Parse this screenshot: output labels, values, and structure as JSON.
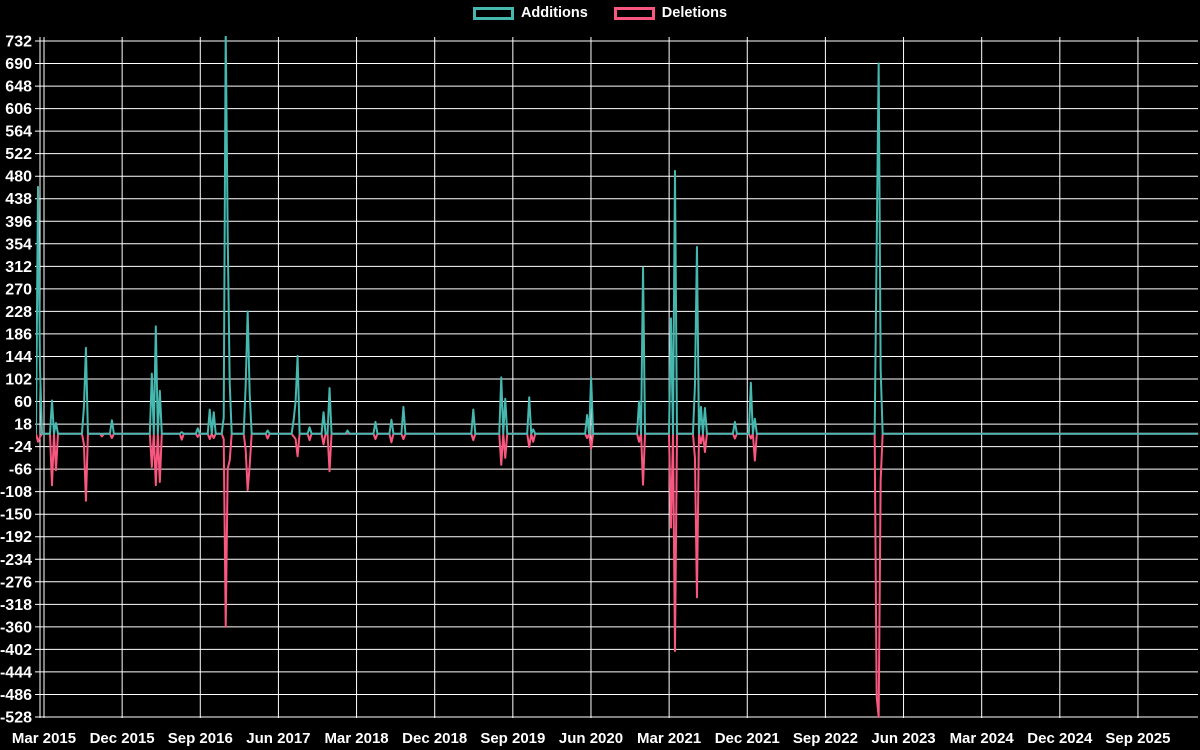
{
  "app": {
    "background_color": "#000000",
    "text_color": "#ffffff",
    "grid_color": "#ffffff"
  },
  "legend": {
    "items": [
      {
        "label": "Additions",
        "color": "#45b8b0"
      },
      {
        "label": "Deletions",
        "color": "#f9577f"
      }
    ]
  },
  "chart_data": {
    "type": "line",
    "description": "Weekly additions (teal) and deletions (pink) spike chart on black background; baseline 0 for most weeks",
    "legend_position": "top-center",
    "grid": true,
    "x_axis": {
      "tick_labels": [
        "Mar 2015",
        "Dec 2015",
        "Sep 2016",
        "Jun 2017",
        "Mar 2018",
        "Dec 2018",
        "Sep 2019",
        "Jun 2020",
        "Mar 2021",
        "Dec 2021",
        "Sep 2022",
        "Jun 2023",
        "Mar 2024",
        "Dec 2024",
        "Sep 2025"
      ],
      "first_tick_date": "2015-03-01",
      "tick_interval_months": 9
    },
    "y_axis": {
      "min": -528,
      "max": 732,
      "tick_step": 42,
      "ticks": [
        732,
        690,
        648,
        606,
        564,
        522,
        480,
        438,
        396,
        354,
        312,
        270,
        228,
        186,
        144,
        102,
        60,
        18,
        -24,
        -66,
        -108,
        -150,
        -192,
        -234,
        -276,
        -318,
        -360,
        -402,
        -444,
        -486,
        -528
      ]
    },
    "series": [
      {
        "name": "Additions",
        "color": "#45b8b0"
      },
      {
        "name": "Deletions",
        "color": "#f9577f"
      }
    ],
    "data_start": "2015-02-01",
    "data_end": "2026-03-29",
    "week_interval_days": 7,
    "zero_note": "every week not listed in weekly_events has additions 0 and deletions 0",
    "clipped_note": "the 2016-11-27 additions spike is clipped at the top of the plot (>732)",
    "weekly_events": [
      {
        "date": "2015-02-08",
        "additions": 460,
        "deletions": -15
      },
      {
        "date": "2015-02-15",
        "additions": 120,
        "deletions": -6
      },
      {
        "date": "2015-03-29",
        "additions": 62,
        "deletions": -96
      },
      {
        "date": "2015-04-12",
        "additions": 20,
        "deletions": -68
      },
      {
        "date": "2015-07-19",
        "additions": 50,
        "deletions": -20
      },
      {
        "date": "2015-07-26",
        "additions": 160,
        "deletions": -125
      },
      {
        "date": "2015-09-20",
        "additions": 0,
        "deletions": -5
      },
      {
        "date": "2015-10-25",
        "additions": 25,
        "deletions": -8
      },
      {
        "date": "2016-03-13",
        "additions": 112,
        "deletions": -62
      },
      {
        "date": "2016-03-27",
        "additions": 200,
        "deletions": -96
      },
      {
        "date": "2016-04-10",
        "additions": 80,
        "deletions": -90
      },
      {
        "date": "2016-06-26",
        "additions": 3,
        "deletions": -11
      },
      {
        "date": "2016-08-21",
        "additions": 10,
        "deletions": -6
      },
      {
        "date": "2016-10-02",
        "additions": 45,
        "deletions": -10
      },
      {
        "date": "2016-10-16",
        "additions": 40,
        "deletions": -8
      },
      {
        "date": "2016-11-20",
        "additions": 30,
        "deletions": -10
      },
      {
        "date": "2016-11-27",
        "additions": 750,
        "deletions": -360
      },
      {
        "date": "2016-12-04",
        "additions": 370,
        "deletions": -65
      },
      {
        "date": "2016-12-11",
        "additions": 95,
        "deletions": -50
      },
      {
        "date": "2017-02-05",
        "additions": 90,
        "deletions": -30
      },
      {
        "date": "2017-02-12",
        "additions": 228,
        "deletions": -105
      },
      {
        "date": "2017-02-19",
        "additions": 75,
        "deletions": -60
      },
      {
        "date": "2017-04-23",
        "additions": 6,
        "deletions": -9
      },
      {
        "date": "2017-07-23",
        "additions": 25,
        "deletions": -5
      },
      {
        "date": "2017-07-30",
        "additions": 60,
        "deletions": -10
      },
      {
        "date": "2017-08-06",
        "additions": 145,
        "deletions": -42
      },
      {
        "date": "2017-09-17",
        "additions": 12,
        "deletions": -12
      },
      {
        "date": "2017-11-05",
        "additions": 40,
        "deletions": -20
      },
      {
        "date": "2017-11-26",
        "additions": 85,
        "deletions": -70
      },
      {
        "date": "2018-01-28",
        "additions": 6,
        "deletions": 0
      },
      {
        "date": "2018-05-06",
        "additions": 22,
        "deletions": -10
      },
      {
        "date": "2018-07-01",
        "additions": 26,
        "deletions": -16
      },
      {
        "date": "2018-08-12",
        "additions": 50,
        "deletions": -10
      },
      {
        "date": "2019-04-14",
        "additions": 45,
        "deletions": -12
      },
      {
        "date": "2019-07-21",
        "additions": 105,
        "deletions": -58
      },
      {
        "date": "2019-08-04",
        "additions": 65,
        "deletions": -45
      },
      {
        "date": "2019-10-27",
        "additions": 68,
        "deletions": -25
      },
      {
        "date": "2019-11-10",
        "additions": 8,
        "deletions": -15
      },
      {
        "date": "2020-05-17",
        "additions": 35,
        "deletions": -8
      },
      {
        "date": "2020-05-31",
        "additions": 105,
        "deletions": -28
      },
      {
        "date": "2020-11-15",
        "additions": 60,
        "deletions": -15
      },
      {
        "date": "2020-11-29",
        "additions": 310,
        "deletions": -95
      },
      {
        "date": "2021-03-07",
        "additions": 215,
        "deletions": -175
      },
      {
        "date": "2021-03-21",
        "additions": 490,
        "deletions": -405
      },
      {
        "date": "2021-05-30",
        "additions": 90,
        "deletions": -45
      },
      {
        "date": "2021-06-06",
        "additions": 348,
        "deletions": -305
      },
      {
        "date": "2021-06-20",
        "additions": 50,
        "deletions": -18
      },
      {
        "date": "2021-07-04",
        "additions": 48,
        "deletions": -34
      },
      {
        "date": "2021-10-17",
        "additions": 22,
        "deletions": -9
      },
      {
        "date": "2021-12-12",
        "additions": 95,
        "deletions": -9
      },
      {
        "date": "2021-12-26",
        "additions": 28,
        "deletions": -50
      },
      {
        "date": "2023-02-26",
        "additions": 345,
        "deletions": -490
      },
      {
        "date": "2023-03-05",
        "additions": 690,
        "deletions": -528
      },
      {
        "date": "2023-03-12",
        "additions": 120,
        "deletions": -87
      }
    ]
  }
}
